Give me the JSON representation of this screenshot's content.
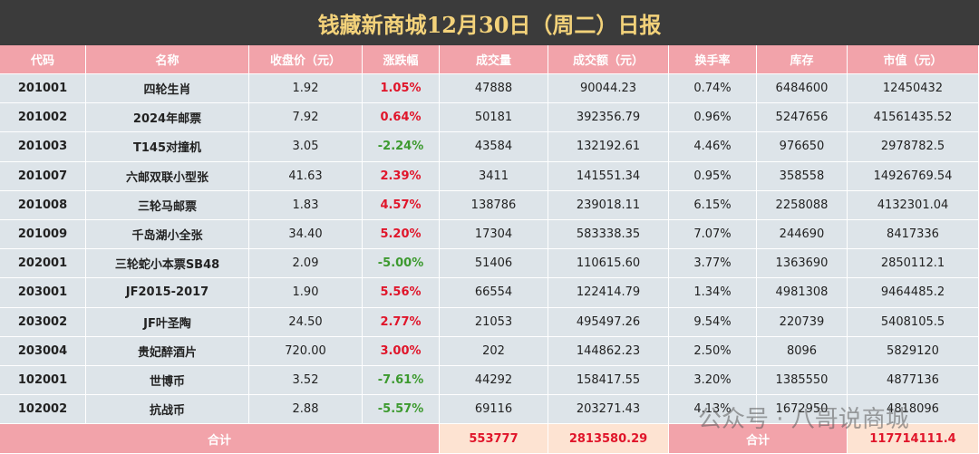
{
  "header": {
    "title": "钱藏新商城12月30日（周二）日报"
  },
  "table": {
    "columns": [
      "代码",
      "名称",
      "收盘价（元）",
      "涨跌幅",
      "成交量",
      "成交额（元）",
      "换手率",
      "库存",
      "市值（元）"
    ],
    "rows": [
      [
        "201001",
        "四轮生肖",
        "1.92",
        "1.05%",
        "47888",
        "90044.23",
        "0.74%",
        "6484600",
        "12450432"
      ],
      [
        "201002",
        "2024年邮票",
        "7.92",
        "0.64%",
        "50181",
        "392356.79",
        "0.96%",
        "5247656",
        "41561435.52"
      ],
      [
        "201003",
        "T145对撞机",
        "3.05",
        "-2.24%",
        "43584",
        "132192.61",
        "4.46%",
        "976650",
        "2978782.5"
      ],
      [
        "201007",
        "六邮双联小型张",
        "41.63",
        "2.39%",
        "3411",
        "141551.34",
        "0.95%",
        "358558",
        "14926769.54"
      ],
      [
        "201008",
        "三轮马邮票",
        "1.83",
        "4.57%",
        "138786",
        "239018.11",
        "6.15%",
        "2258088",
        "4132301.04"
      ],
      [
        "201009",
        "千岛湖小全张",
        "34.40",
        "5.20%",
        "17304",
        "583338.35",
        "7.07%",
        "244690",
        "8417336"
      ],
      [
        "202001",
        "三轮蛇小本票SB48",
        "2.09",
        "-5.00%",
        "51406",
        "110615.60",
        "3.77%",
        "1363690",
        "2850112.1"
      ],
      [
        "203001",
        "JF2015-2017",
        "1.90",
        "5.56%",
        "66554",
        "122414.79",
        "1.34%",
        "4981308",
        "9464485.2"
      ],
      [
        "203002",
        "JF叶圣陶",
        "24.50",
        "2.77%",
        "21053",
        "495497.26",
        "9.54%",
        "220739",
        "5408105.5"
      ],
      [
        "203004",
        "贵妃醉酒片",
        "720.00",
        "3.00%",
        "202",
        "144862.23",
        "2.50%",
        "8096",
        "5829120"
      ],
      [
        "102001",
        "世博币",
        "3.52",
        "-7.61%",
        "44292",
        "158417.55",
        "3.20%",
        "1385550",
        "4877136"
      ],
      [
        "102002",
        "抗战币",
        "2.88",
        "-5.57%",
        "69116",
        "203271.43",
        "4.13%",
        "1672950",
        "4818096"
      ]
    ],
    "footer": [
      "合计",
      "553777",
      "2813580.29",
      "合计",
      "117714111.4"
    ]
  },
  "watermark": "公众号 · 八哥说商城"
}
